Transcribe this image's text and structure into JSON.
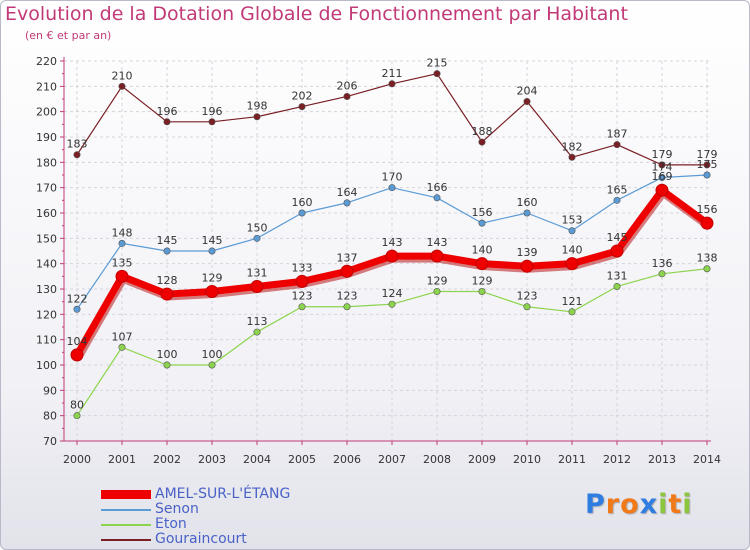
{
  "title": "Evolution de la Dotation Globale de Fonctionnement par Habitant",
  "subtitle": "(en € et par an)",
  "logo": {
    "letters": [
      "P",
      "r",
      "o",
      "x",
      "i",
      "t",
      "i"
    ],
    "colors": [
      "#2f7de0",
      "#f07a1a",
      "#f07a1a",
      "#2f7de0",
      "#8cc63f",
      "#f07a1a",
      "#8cc63f"
    ]
  },
  "chart_data": {
    "type": "line",
    "title": "Evolution de la Dotation Globale de Fonctionnement par Habitant",
    "ylabel": "(en € et par an)",
    "x": [
      2000,
      2001,
      2002,
      2003,
      2004,
      2005,
      2006,
      2007,
      2008,
      2009,
      2010,
      2011,
      2012,
      2013,
      2014
    ],
    "ylim": [
      70,
      220
    ],
    "yticks": [
      70,
      80,
      90,
      100,
      110,
      120,
      130,
      140,
      150,
      160,
      170,
      180,
      190,
      200,
      210,
      220
    ],
    "grid": true,
    "series": [
      {
        "name": "Gouraincourt",
        "color": "#7a1f24",
        "values": [
          183,
          210,
          196,
          196,
          198,
          202,
          206,
          211,
          215,
          188,
          204,
          182,
          187,
          179,
          179
        ]
      },
      {
        "name": "Senon",
        "color": "#5b9bd5",
        "values": [
          122,
          148,
          145,
          145,
          150,
          160,
          164,
          170,
          166,
          156,
          160,
          153,
          165,
          174,
          175
        ]
      },
      {
        "name": "Eton",
        "color": "#8cd44d",
        "values": [
          80,
          107,
          100,
          100,
          113,
          123,
          123,
          124,
          129,
          129,
          123,
          121,
          131,
          136,
          138
        ]
      },
      {
        "name": "AMEL-SUR-L'ÉTANG",
        "color": "#ee0000",
        "values": [
          104,
          135,
          128,
          129,
          131,
          133,
          137,
          143,
          143,
          140,
          139,
          140,
          145,
          169,
          156
        ]
      }
    ]
  },
  "legend": [
    {
      "label": "AMEL-SUR-L'ÉTANG",
      "color": "#ee0000"
    },
    {
      "label": "Senon",
      "color": "#5b9bd5"
    },
    {
      "label": "Eton",
      "color": "#8cd44d"
    },
    {
      "label": "Gouraincourt",
      "color": "#7a1f24"
    }
  ]
}
